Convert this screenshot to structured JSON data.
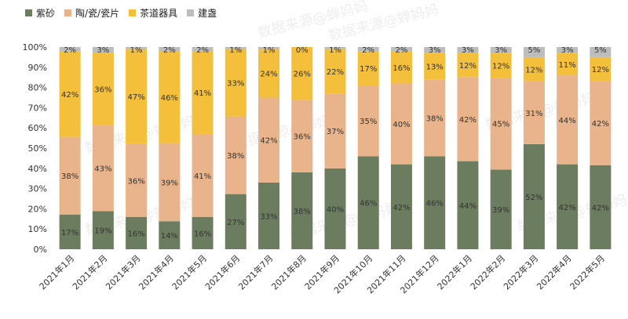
{
  "chart_data": {
    "type": "bar",
    "stacked": true,
    "title": "",
    "xlabel": "",
    "ylabel": "",
    "ylim": [
      0,
      100
    ],
    "y_ticks": [
      "0%",
      "10%",
      "20%",
      "30%",
      "40%",
      "50%",
      "60%",
      "70%",
      "80%",
      "90%",
      "100%"
    ],
    "grid": false,
    "legend_position": "top-left",
    "categories": [
      "2021年1月",
      "2021年2月",
      "2021年3月",
      "2021年4月",
      "2021年5月",
      "2021年6月",
      "2021年7月",
      "2021年8月",
      "2021年9月",
      "2021年10月",
      "2021年11月",
      "2021年12月",
      "2022年1月",
      "2022年2月",
      "2022年3月",
      "2022年4月",
      "2022年5月"
    ],
    "series": [
      {
        "name": "紫砂",
        "color": "#6b7c5f",
        "values": [
          17,
          19,
          16,
          14,
          16,
          27,
          33,
          38,
          40,
          46,
          42,
          46,
          44,
          39,
          52,
          42,
          42
        ]
      },
      {
        "name": "陶/瓷/瓷片",
        "color": "#e9b48b",
        "values": [
          38,
          43,
          36,
          39,
          41,
          38,
          42,
          36,
          37,
          35,
          40,
          38,
          42,
          45,
          31,
          44,
          42
        ]
      },
      {
        "name": "茶道器具",
        "color": "#f4bf3a",
        "values": [
          42,
          36,
          47,
          46,
          41,
          33,
          24,
          26,
          22,
          17,
          16,
          13,
          12,
          12,
          12,
          11,
          12
        ]
      },
      {
        "name": "建盏",
        "color": "#bdbdbd",
        "values": [
          2,
          3,
          1,
          2,
          2,
          1,
          1,
          0,
          1,
          2,
          2,
          3,
          3,
          3,
          5,
          3,
          5
        ]
      }
    ],
    "watermark": "数据来源@蝉妈妈"
  }
}
